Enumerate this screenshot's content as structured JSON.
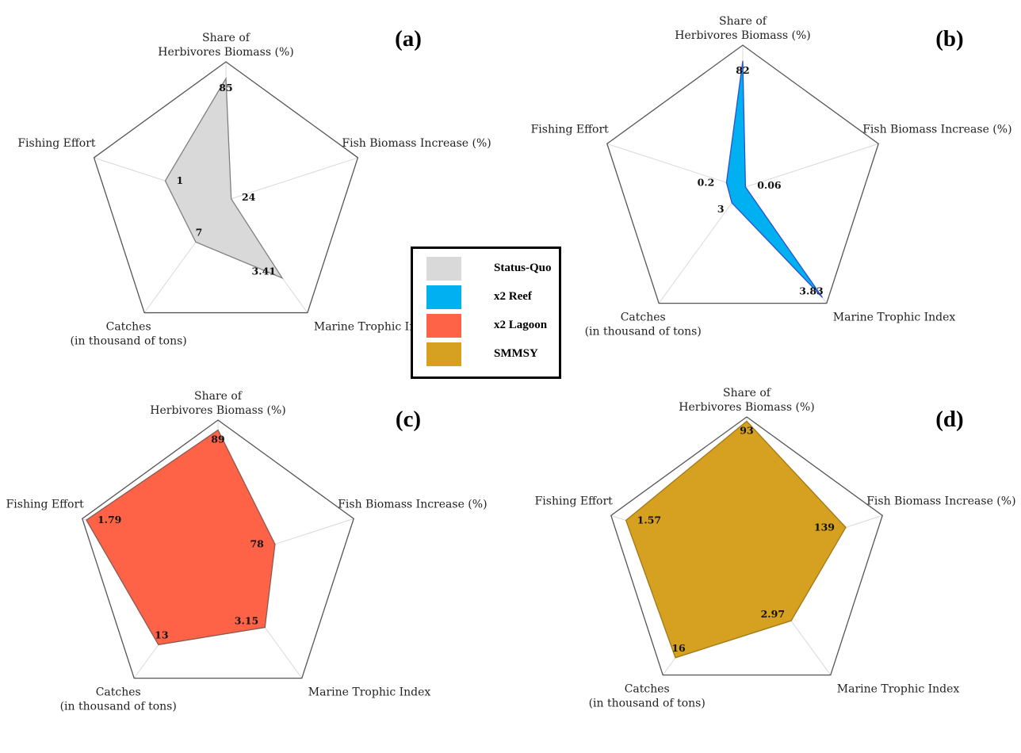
{
  "chart_data": [
    {
      "type": "radar",
      "panel_label": "(a)",
      "axes": [
        {
          "label": [
            "Share of",
            "Herbivores Biomass (%)"
          ]
        },
        {
          "label": [
            "Fish Biomass Increase (%)"
          ]
        },
        {
          "label": [
            "Marine Trophic Index"
          ]
        },
        {
          "label": [
            "Catches",
            "(in thousand of tons)"
          ]
        },
        {
          "label": [
            "Fishing Effort"
          ]
        }
      ],
      "series": [
        {
          "name": "Status-Quo",
          "color": "#d9d9d9",
          "stroke": "#7f7f7f",
          "values": [
            85,
            24,
            3.41,
            7,
            1
          ],
          "labels": [
            "85",
            "24",
            "3.41",
            "7",
            "1"
          ],
          "fractions": [
            0.88,
            0.04,
            0.69,
            0.37,
            0.46
          ]
        }
      ]
    },
    {
      "type": "radar",
      "panel_label": "(b)",
      "axes": [
        {
          "label": [
            "Share of",
            "Herbivores Biomass (%)"
          ]
        },
        {
          "label": [
            "Fish Biomass Increase (%)"
          ]
        },
        {
          "label": [
            "Marine Trophic Index"
          ]
        },
        {
          "label": [
            "Catches",
            "(in thousand of tons)"
          ]
        },
        {
          "label": [
            "Fishing Effort"
          ]
        }
      ],
      "series": [
        {
          "name": "x2 Reef",
          "color": "#00b0f0",
          "stroke": "#2f4fd0",
          "values": [
            82,
            0.06,
            3.83,
            3,
            0.2
          ],
          "labels": [
            "82",
            "0.06",
            "3.83",
            "3",
            "0.2"
          ],
          "fractions": [
            0.89,
            0.02,
            0.95,
            0.13,
            0.12
          ]
        }
      ]
    },
    {
      "type": "radar",
      "panel_label": "(c)",
      "axes": [
        {
          "label": [
            "Share of",
            "Herbivores Biomass (%)"
          ]
        },
        {
          "label": [
            "Fish Biomass Increase (%)"
          ]
        },
        {
          "label": [
            "Marine Trophic Index"
          ]
        },
        {
          "label": [
            "Catches",
            "(in thousand of tons)"
          ]
        },
        {
          "label": [
            "Fishing Effort"
          ]
        }
      ],
      "series": [
        {
          "name": "x2 Lagoon",
          "color": "#ff6347",
          "stroke": "#8a5a50",
          "values": [
            89,
            78,
            3.15,
            13,
            1.79
          ],
          "labels": [
            "89",
            "78",
            "3.15",
            "13",
            "1.79"
          ],
          "fractions": [
            0.93,
            0.42,
            0.56,
            0.71,
            0.97
          ]
        }
      ]
    },
    {
      "type": "radar",
      "panel_label": "(d)",
      "axes": [
        {
          "label": [
            "Share of",
            "Herbivores Biomass (%)"
          ]
        },
        {
          "label": [
            "Fish Biomass Increase (%)"
          ]
        },
        {
          "label": [
            "Marine Trophic Index"
          ]
        },
        {
          "label": [
            "Catches",
            "(in thousand of tons)"
          ]
        },
        {
          "label": [
            "Fishing Effort"
          ]
        }
      ],
      "series": [
        {
          "name": "SMMSY",
          "color": "#d6a020",
          "stroke": "#a07818",
          "values": [
            93,
            139,
            2.97,
            16,
            1.57
          ],
          "labels": [
            "93",
            "139",
            "2.97",
            "16",
            "1.57"
          ],
          "fractions": [
            0.97,
            0.73,
            0.53,
            0.85,
            0.89
          ]
        }
      ]
    }
  ],
  "legend": {
    "items": [
      {
        "label": "Status-Quo",
        "color": "#d9d9d9"
      },
      {
        "label": "x2 Reef",
        "color": "#00b0f0"
      },
      {
        "label": "x2 Lagoon",
        "color": "#ff6347"
      },
      {
        "label": "SMMSY",
        "color": "#d6a020"
      }
    ]
  }
}
